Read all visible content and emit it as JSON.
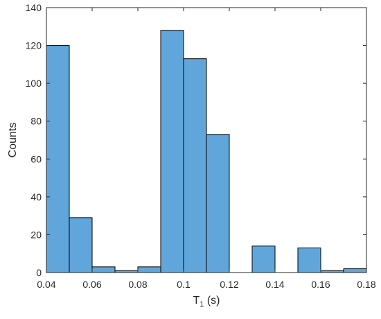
{
  "chart_data": {
    "type": "bar",
    "title": "",
    "xlabel": "T",
    "xlabel_subscript": "1",
    "xlabel_suffix": " (s)",
    "ylabel": "Counts",
    "xlim": [
      0.04,
      0.18
    ],
    "ylim": [
      0,
      140
    ],
    "xticks": [
      "0.04",
      "0.06",
      "0.08",
      "0.1",
      "0.12",
      "0.14",
      "0.16",
      "0.18"
    ],
    "xtick_values": [
      0.04,
      0.06,
      0.08,
      0.1,
      0.12,
      0.14,
      0.16,
      0.18
    ],
    "yticks": [
      "0",
      "20",
      "40",
      "60",
      "80",
      "100",
      "120",
      "140"
    ],
    "ytick_values": [
      0,
      20,
      40,
      60,
      80,
      100,
      120,
      140
    ],
    "bin_width": 0.01,
    "bins": [
      {
        "start": 0.04,
        "end": 0.05,
        "count": 120
      },
      {
        "start": 0.05,
        "end": 0.06,
        "count": 29
      },
      {
        "start": 0.06,
        "end": 0.07,
        "count": 3
      },
      {
        "start": 0.07,
        "end": 0.08,
        "count": 1
      },
      {
        "start": 0.08,
        "end": 0.09,
        "count": 3
      },
      {
        "start": 0.09,
        "end": 0.1,
        "count": 128
      },
      {
        "start": 0.1,
        "end": 0.11,
        "count": 113
      },
      {
        "start": 0.11,
        "end": 0.12,
        "count": 73
      },
      {
        "start": 0.12,
        "end": 0.13,
        "count": 0
      },
      {
        "start": 0.13,
        "end": 0.14,
        "count": 14
      },
      {
        "start": 0.14,
        "end": 0.15,
        "count": 0
      },
      {
        "start": 0.15,
        "end": 0.16,
        "count": 13
      },
      {
        "start": 0.16,
        "end": 0.17,
        "count": 1
      },
      {
        "start": 0.17,
        "end": 0.18,
        "count": 2
      }
    ],
    "bar_color": "#61A6DB",
    "edge_color": "#000000",
    "grid": false,
    "legend": "none"
  }
}
